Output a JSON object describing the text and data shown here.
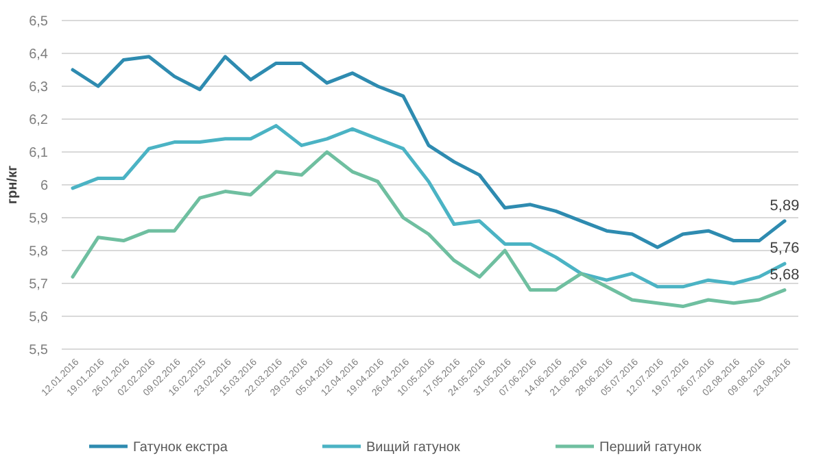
{
  "chart_data": {
    "type": "line",
    "ylabel": "грн/кг",
    "categories": [
      "12.01.2016",
      "19.01.2016",
      "26.01.2016",
      "02.02.2016",
      "09.02.2016",
      "16.02.2015",
      "23.02.2016",
      "15.03.2016",
      "22.03.2016",
      "29.03.2016",
      "05.04.2016",
      "12.04.2016",
      "19.04.2016",
      "26.04.2016",
      "10.05.2016",
      "17.05.2016",
      "24.05.2016",
      "31.05.2016",
      "07.06.2016",
      "14.06.2016",
      "21.06.2016",
      "28.06.2016",
      "05.07.2016",
      "12.07.2016",
      "19.07.2016",
      "26.07.2016",
      "02.08.2016",
      "09.08.2016",
      "23.08.2016"
    ],
    "series": [
      {
        "name": "Гатунок екстра",
        "color": "#2e8bb0",
        "values": [
          6.35,
          6.3,
          6.38,
          6.39,
          6.33,
          6.29,
          6.39,
          6.32,
          6.37,
          6.37,
          6.31,
          6.34,
          6.3,
          6.27,
          6.12,
          6.07,
          6.03,
          5.93,
          5.94,
          5.92,
          5.89,
          5.86,
          5.85,
          5.81,
          5.85,
          5.86,
          5.83,
          5.83,
          5.89
        ],
        "value_labels": [
          null,
          null,
          null,
          null,
          null,
          null,
          null,
          null,
          null,
          null,
          null,
          null,
          null,
          null,
          null,
          null,
          null,
          null,
          null,
          null,
          null,
          null,
          null,
          null,
          null,
          null,
          null,
          null,
          "5,89"
        ]
      },
      {
        "name": "Вищий гатунок",
        "color": "#4bb3c4",
        "values": [
          5.99,
          6.02,
          6.02,
          6.11,
          6.13,
          6.13,
          6.14,
          6.14,
          6.18,
          6.12,
          6.14,
          6.17,
          6.14,
          6.11,
          6.01,
          5.88,
          5.89,
          5.82,
          5.82,
          5.78,
          5.73,
          5.71,
          5.73,
          5.69,
          5.69,
          5.71,
          5.7,
          5.72,
          5.76
        ],
        "value_labels": [
          null,
          null,
          null,
          null,
          null,
          null,
          null,
          null,
          null,
          null,
          null,
          null,
          null,
          null,
          null,
          null,
          null,
          null,
          null,
          null,
          null,
          null,
          null,
          null,
          null,
          null,
          null,
          null,
          "5,76"
        ]
      },
      {
        "name": "Перший гатунок",
        "color": "#6fbfa0",
        "values": [
          5.72,
          5.84,
          5.83,
          5.86,
          5.86,
          5.96,
          5.98,
          5.97,
          6.04,
          6.03,
          6.1,
          6.04,
          6.01,
          5.9,
          5.85,
          5.77,
          5.72,
          5.8,
          5.68,
          5.68,
          5.73,
          5.69,
          5.65,
          5.64,
          5.63,
          5.65,
          5.64,
          5.65,
          5.68
        ],
        "value_labels": [
          null,
          null,
          null,
          null,
          null,
          null,
          null,
          null,
          null,
          null,
          null,
          null,
          null,
          null,
          null,
          null,
          null,
          null,
          null,
          null,
          null,
          null,
          null,
          null,
          null,
          null,
          null,
          null,
          "5,68"
        ]
      }
    ],
    "ylim": [
      5.5,
      6.5
    ],
    "yticks": [
      {
        "value": 5.5,
        "label": "5,5"
      },
      {
        "value": 5.6,
        "label": "5,6"
      },
      {
        "value": 5.7,
        "label": "5,7"
      },
      {
        "value": 5.8,
        "label": "5,8"
      },
      {
        "value": 5.9,
        "label": "5,9"
      },
      {
        "value": 6,
        "label": "6"
      },
      {
        "value": 6.1,
        "label": "6,1"
      },
      {
        "value": 6.2,
        "label": "6,2"
      },
      {
        "value": 6.3,
        "label": "6,3"
      },
      {
        "value": 6.4,
        "label": "6,4"
      },
      {
        "value": 6.5,
        "label": "6,5"
      }
    ],
    "grid": "y",
    "legend": "bottom",
    "marker": "none",
    "line_style": "solid"
  }
}
